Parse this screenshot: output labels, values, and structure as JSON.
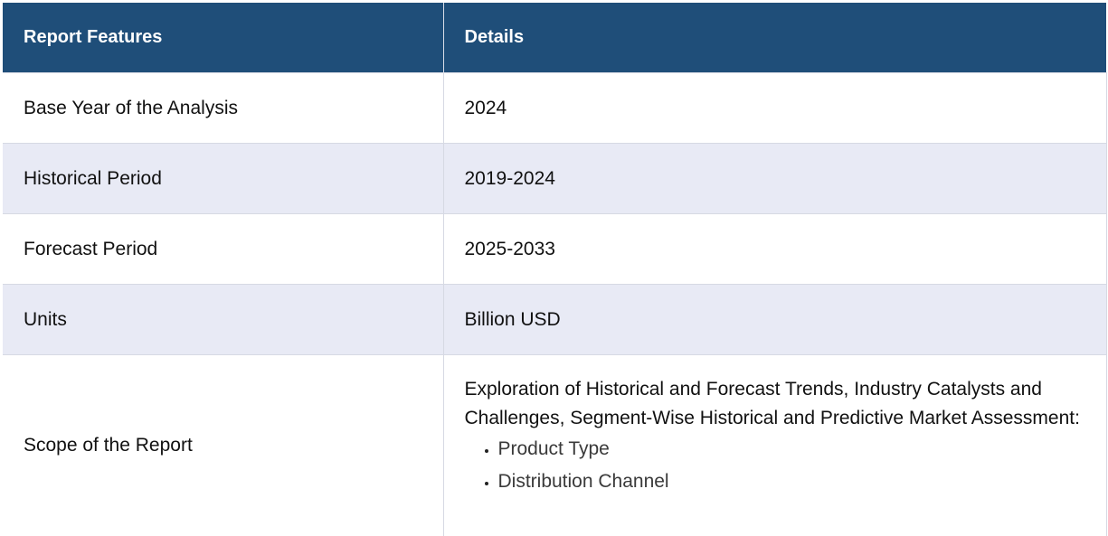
{
  "table": {
    "headers": [
      "Report Features",
      "Details"
    ],
    "rows": [
      {
        "feature": "Base Year of the Analysis",
        "detail": "2024"
      },
      {
        "feature": "Historical Period",
        "detail": "2019-2024"
      },
      {
        "feature": "Forecast Period",
        "detail": "2025-2033"
      },
      {
        "feature": "Units",
        "detail": "Billion USD"
      }
    ],
    "scope": {
      "feature": "Scope of the Report",
      "description": "Exploration of Historical and Forecast Trends, Industry Catalysts and Challenges, Segment-Wise Historical and Predictive Market Assessment:",
      "items": [
        "Product Type",
        "Distribution Channel"
      ]
    }
  },
  "colors": {
    "header_bg": "#1f4e79",
    "header_text": "#ffffff",
    "alt_row_bg": "#e8eaf5"
  }
}
